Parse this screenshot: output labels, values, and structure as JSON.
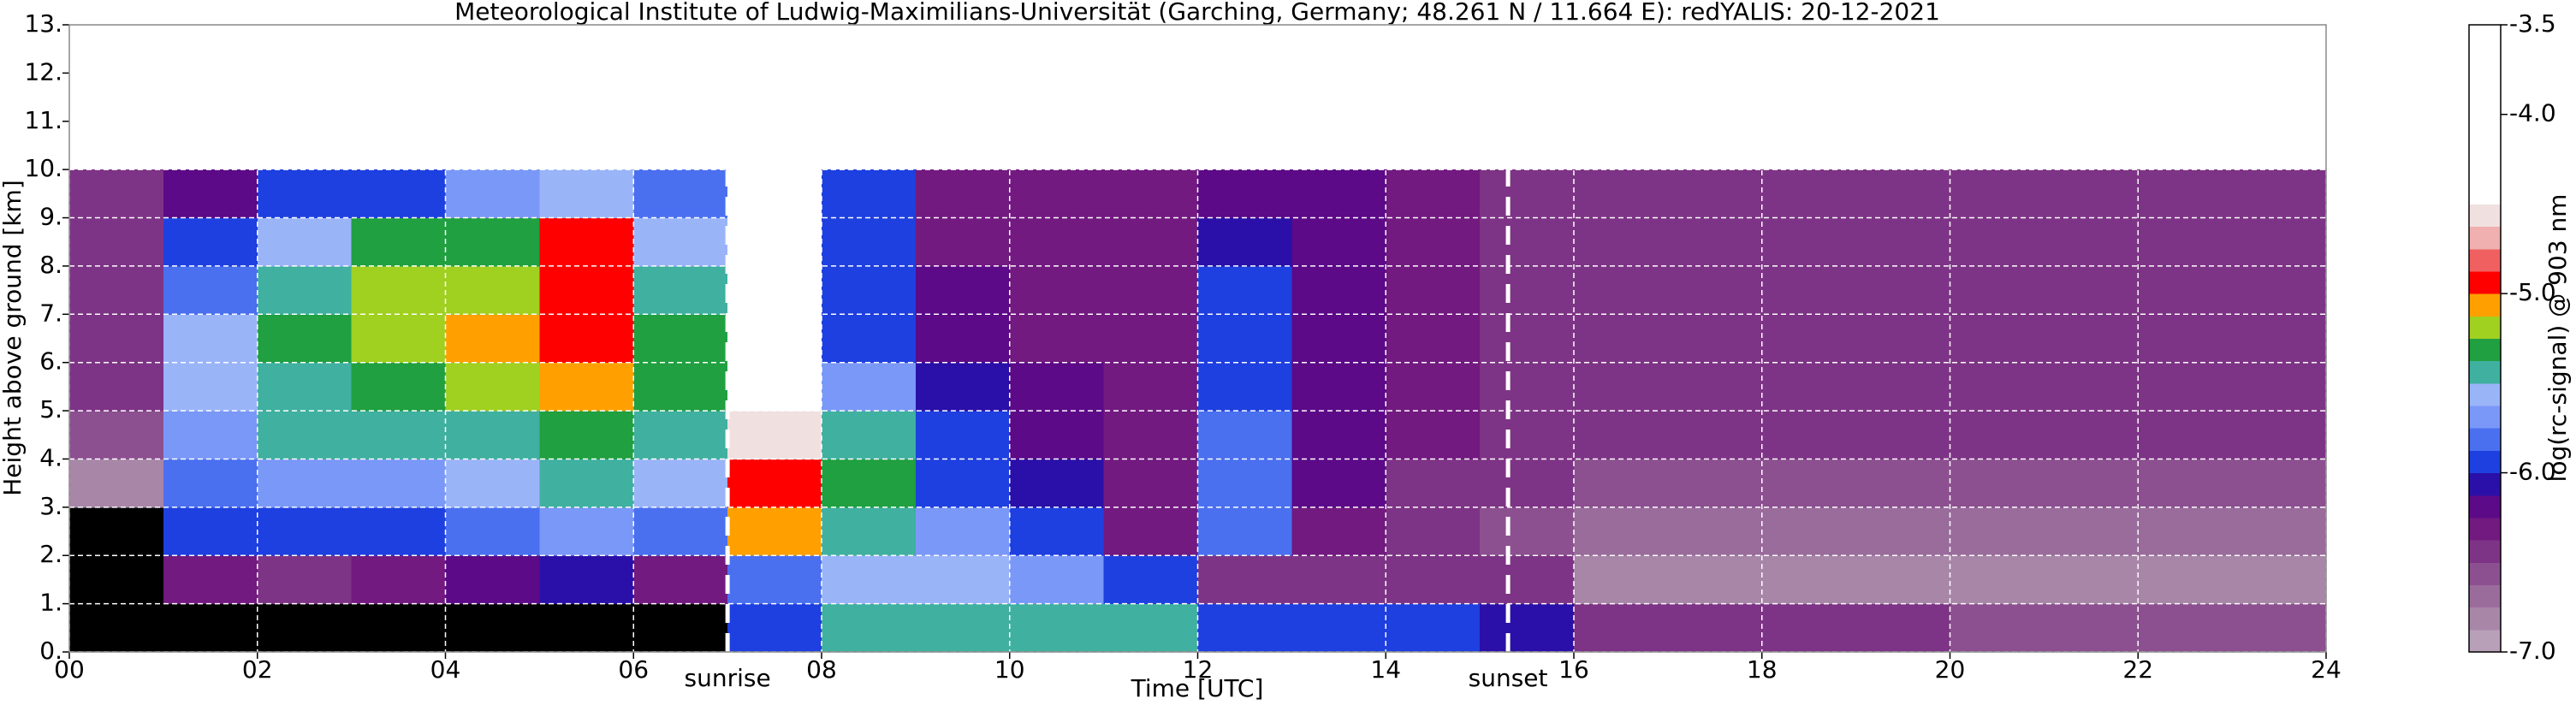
{
  "chart_data": {
    "type": "heatmap",
    "title": "Meteorological Institute of Ludwig-Maximilians-Universität (Garching, Germany; 48.261 N / 11.664 E):    redYALIS: 20-12-2021",
    "x_label": "Time [UTC]",
    "y_label": "Height above ground [km]",
    "colorbar_label": "log(rc-signal) @ 903 nm",
    "xlim": [
      0,
      24
    ],
    "xticks": [
      {
        "value": 0,
        "label": "00"
      },
      {
        "value": 2,
        "label": "02"
      },
      {
        "value": 4,
        "label": "04"
      },
      {
        "value": 6,
        "label": "06"
      },
      {
        "value": 8,
        "label": "08"
      },
      {
        "value": 10,
        "label": "10"
      },
      {
        "value": 12,
        "label": "12"
      },
      {
        "value": 14,
        "label": "14"
      },
      {
        "value": 16,
        "label": "16"
      },
      {
        "value": 18,
        "label": "18"
      },
      {
        "value": 20,
        "label": "20"
      },
      {
        "value": 22,
        "label": "22"
      },
      {
        "value": 24,
        "label": "24"
      }
    ],
    "ylim": [
      0,
      13
    ],
    "yticks": [
      {
        "value": 0,
        "label": "0."
      },
      {
        "value": 1,
        "label": "1."
      },
      {
        "value": 2,
        "label": "2."
      },
      {
        "value": 3,
        "label": "3."
      },
      {
        "value": 4,
        "label": "4."
      },
      {
        "value": 5,
        "label": "5."
      },
      {
        "value": 6,
        "label": "6."
      },
      {
        "value": 7,
        "label": "7."
      },
      {
        "value": 8,
        "label": "8."
      },
      {
        "value": 9,
        "label": "9."
      },
      {
        "value": 10,
        "label": "10."
      },
      {
        "value": 11,
        "label": "11."
      },
      {
        "value": 12,
        "label": "12."
      },
      {
        "value": 13,
        "label": "13."
      }
    ],
    "grid": true,
    "clim": [
      -7,
      -3.5
    ],
    "cticks": [
      {
        "value": -7,
        "label": "-7.0"
      },
      {
        "value": -6,
        "label": "-6.0"
      },
      {
        "value": -5,
        "label": "-5.0"
      },
      {
        "value": -4,
        "label": "-4.0"
      },
      -3.5
    ],
    "colors": [
      "#b8a0b8",
      "#a886a8",
      "#9a6c9c",
      "#8c5090",
      "#7e3486",
      "#721a80",
      "#5c0a88",
      "#2a10a8",
      "#1e40e0",
      "#4a70f0",
      "#7a98f8",
      "#9ab4f8",
      "#40b0a0",
      "#20a040",
      "#a0d020",
      "#ffa000",
      "#ff0000",
      "#f06060",
      "#f0b0b0",
      "#f0e0e0",
      "#ffffff",
      "#ffffff",
      "#ffffff",
      "#ffffff",
      "#ffffff",
      "#ffffff",
      "#ffffff",
      "#ffffff"
    ],
    "under_color": "#000000",
    "x_edges": [
      0,
      1,
      2,
      3,
      4,
      5,
      6,
      7,
      8,
      9,
      10,
      11,
      12,
      13,
      14,
      15,
      16,
      17,
      18,
      19,
      20,
      21,
      22,
      23,
      24
    ],
    "y_edges": [
      0,
      1,
      2,
      3,
      4,
      5,
      6,
      7,
      8,
      9,
      10
    ],
    "z": [
      [
        -7.2,
        -7.2,
        -7.2,
        -7.2,
        -7.2,
        -7.2,
        -7.2,
        -5.9,
        -5.5,
        -5.4,
        -5.4,
        -5.5,
        -6.0,
        -6.0,
        -6.0,
        -6.1,
        -6.5,
        -6.5,
        -6.5,
        -6.5,
        -6.6,
        -6.6,
        -6.6,
        -6.6
      ],
      [
        -7.2,
        -6.3,
        -6.4,
        -6.3,
        -6.2,
        -6.1,
        -6.3,
        -5.8,
        -5.6,
        -5.6,
        -5.7,
        -6.0,
        -6.4,
        -6.5,
        -6.4,
        -6.5,
        -6.8,
        -6.8,
        -6.8,
        -6.8,
        -6.8,
        -6.8,
        -6.8,
        -6.8
      ],
      [
        -7.2,
        -6.0,
        -5.9,
        -5.9,
        -5.8,
        -5.7,
        -5.8,
        -5.1,
        -5.4,
        -5.7,
        -6.0,
        -6.3,
        -5.8,
        -6.3,
        -6.4,
        -6.6,
        -6.7,
        -6.7,
        -6.7,
        -6.7,
        -6.7,
        -6.7,
        -6.7,
        -6.7
      ],
      [
        -6.8,
        -5.8,
        -5.7,
        -5.7,
        -5.6,
        -5.5,
        -5.6,
        -5.0,
        -5.3,
        -5.9,
        -6.1,
        -6.3,
        -5.8,
        -6.2,
        -6.4,
        -6.5,
        -6.6,
        -6.6,
        -6.6,
        -6.6,
        -6.6,
        -6.6,
        -6.6,
        -6.6
      ],
      [
        -6.6,
        -5.7,
        -5.5,
        -5.5,
        -5.4,
        -5.3,
        -5.4,
        -4.6,
        -5.4,
        -6.0,
        -6.2,
        -6.3,
        -5.8,
        -6.2,
        -6.3,
        -6.4,
        -6.5,
        -6.5,
        -6.5,
        -6.5,
        -6.5,
        -6.5,
        -6.5,
        -6.5
      ],
      [
        -6.4,
        -5.6,
        -5.4,
        -5.3,
        -5.2,
        -5.1,
        -5.3,
        -4.4,
        -5.7,
        -6.1,
        -6.2,
        -6.3,
        -5.9,
        -6.2,
        -6.3,
        -6.4,
        -6.4,
        -6.4,
        -6.4,
        -6.4,
        -6.4,
        -6.4,
        -6.4,
        -6.4
      ],
      [
        -6.4,
        -5.6,
        -5.3,
        -5.2,
        -5.1,
        -5.0,
        -5.3,
        -4.3,
        -5.9,
        -6.2,
        -6.3,
        -6.3,
        -6.0,
        -6.2,
        -6.3,
        -6.4,
        -6.4,
        -6.4,
        -6.4,
        -6.4,
        -6.4,
        -6.4,
        -6.4,
        -6.4
      ],
      [
        -6.4,
        -5.8,
        -5.4,
        -5.2,
        -5.2,
        -5.0,
        -5.4,
        -4.3,
        -6.0,
        -6.2,
        -6.3,
        -6.3,
        -6.0,
        -6.2,
        -6.3,
        -6.4,
        -6.5,
        -6.5,
        -6.5,
        -6.5,
        -6.5,
        -6.5,
        -6.5,
        -6.5
      ],
      [
        -6.4,
        -6.0,
        -5.6,
        -5.3,
        -5.3,
        -5.0,
        -5.6,
        -4.3,
        -6.0,
        -6.3,
        -6.3,
        -6.3,
        -6.1,
        -6.2,
        -6.3,
        -6.4,
        -6.5,
        -6.5,
        -6.5,
        -6.5,
        -6.5,
        -6.5,
        -6.5,
        -6.5
      ],
      [
        -6.4,
        -6.2,
        -6.0,
        -5.9,
        -5.7,
        -5.6,
        -5.8,
        -4.4,
        -6.0,
        -6.3,
        -6.3,
        -6.3,
        -6.2,
        -6.2,
        -6.3,
        -6.4,
        -6.5,
        -6.5,
        -6.5,
        -6.5,
        -6.5,
        -6.5,
        -6.5,
        -6.5
      ]
    ],
    "annotations": [
      {
        "text": "sunrise",
        "x": 7.0
      },
      {
        "text": "sunset",
        "x": 15.3
      }
    ]
  }
}
